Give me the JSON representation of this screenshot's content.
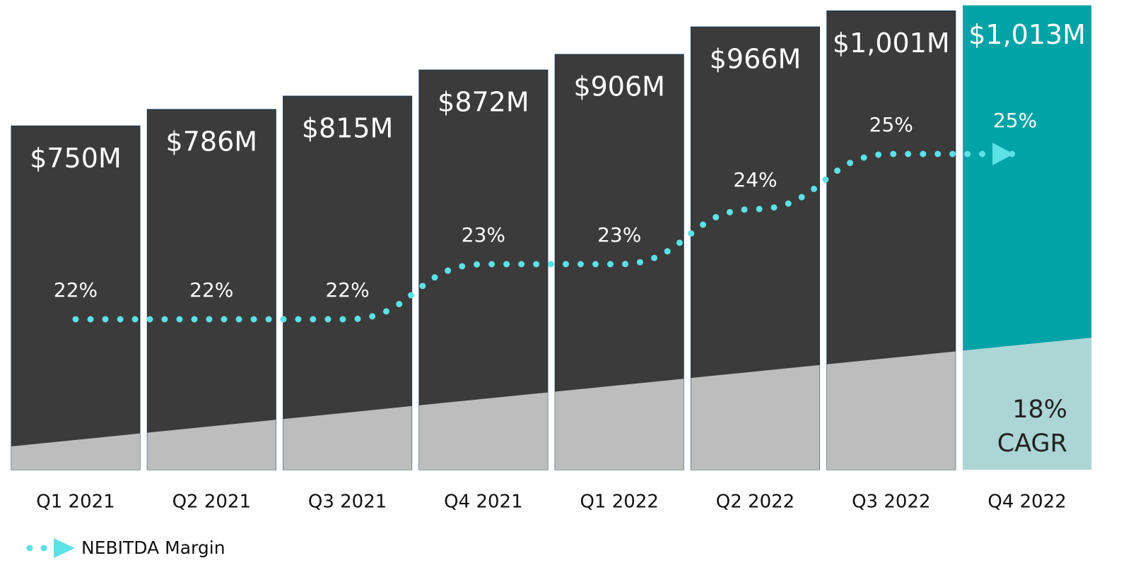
{
  "chart_data": {
    "type": "bar",
    "categories": [
      "Q1 2021",
      "Q2 2021",
      "Q3 2021",
      "Q4 2021",
      "Q1 2022",
      "Q2 2022",
      "Q3 2022",
      "Q4 2022"
    ],
    "values": [
      750,
      786,
      815,
      872,
      906,
      966,
      1001,
      1013
    ],
    "value_labels": [
      "$750M",
      "$786M",
      "$815M",
      "$872M",
      "$906M",
      "$966M",
      "$1,001M",
      "$1,013M"
    ],
    "color": "#3b3b3b",
    "highlight_color": "#00a3a6",
    "series": [
      {
        "name": "NEBITDA Margin",
        "type": "line",
        "color": "#5ce1e6",
        "values": [
          22,
          22,
          22,
          23,
          23,
          24,
          25,
          25
        ],
        "value_labels": [
          "22%",
          "22%",
          "22%",
          "23%",
          "23%",
          "24%",
          "25%",
          "25%"
        ]
      }
    ],
    "annotation": "18% CAGR",
    "legend": "bottom-left"
  }
}
